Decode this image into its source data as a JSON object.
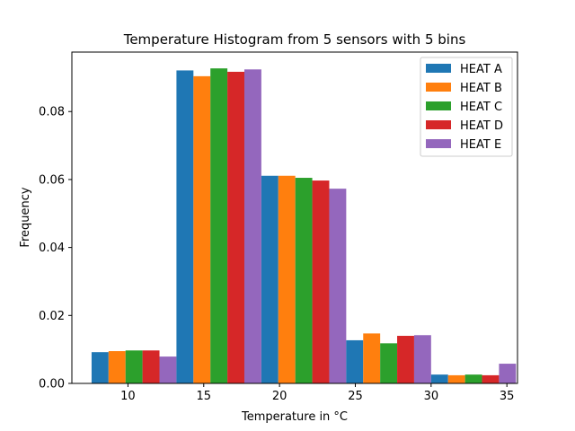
{
  "chart_data": {
    "type": "bar",
    "title": "Temperature Histogram from 5 sensors with 5 bins",
    "xlabel": "Temperature in °C",
    "ylabel": "Frequency",
    "xlim": [
      6.3,
      35.7
    ],
    "ylim": [
      0,
      0.0975
    ],
    "xticks": [
      10,
      15,
      20,
      25,
      30,
      35
    ],
    "yticks": [
      0.0,
      0.02,
      0.04,
      0.06,
      0.08
    ],
    "ytick_labels": [
      "0.00",
      "0.02",
      "0.04",
      "0.06",
      "0.08"
    ],
    "bin_edges": [
      7.6,
      13.2,
      18.8,
      24.4,
      30.0,
      35.6
    ],
    "grid": false,
    "legend_position": "top-right",
    "series": [
      {
        "name": "HEAT A",
        "color": "#1f77b4",
        "values": [
          0.0092,
          0.0921,
          0.0611,
          0.0127,
          0.0026
        ]
      },
      {
        "name": "HEAT B",
        "color": "#ff7f0e",
        "values": [
          0.0095,
          0.0904,
          0.0611,
          0.0147,
          0.0024
        ]
      },
      {
        "name": "HEAT C",
        "color": "#2ca02c",
        "values": [
          0.0097,
          0.0927,
          0.0605,
          0.0118,
          0.0026
        ]
      },
      {
        "name": "HEAT D",
        "color": "#d62728",
        "values": [
          0.0097,
          0.0917,
          0.0597,
          0.014,
          0.0024
        ]
      },
      {
        "name": "HEAT E",
        "color": "#9467bd",
        "values": [
          0.0079,
          0.0924,
          0.0573,
          0.0142,
          0.0058
        ]
      }
    ]
  }
}
